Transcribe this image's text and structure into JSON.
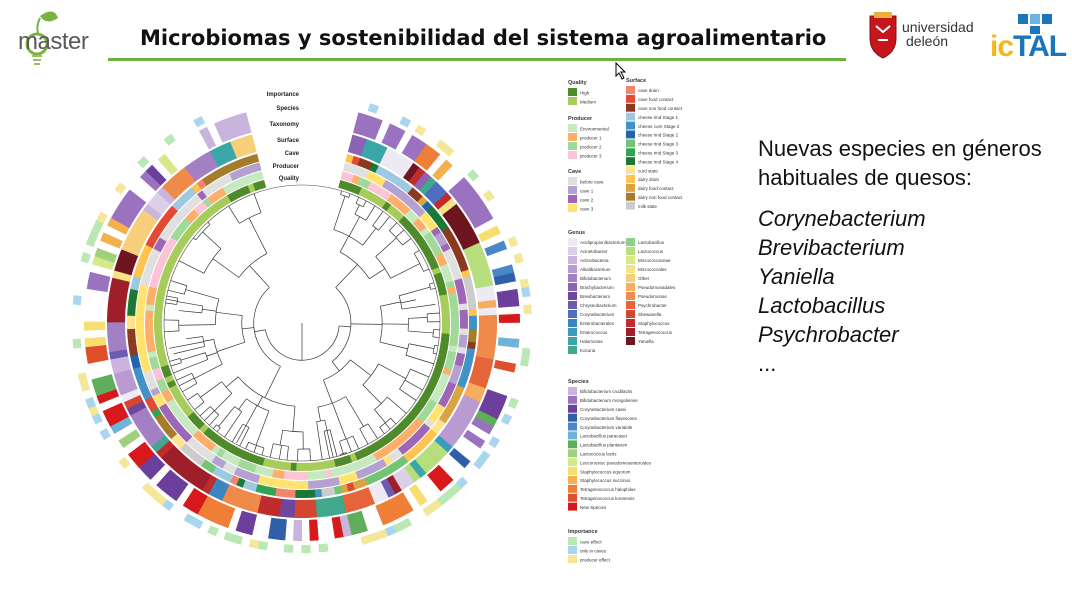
{
  "header": {
    "logo_text": "master",
    "title": "Microbiomas y sostenibilidad del sistema agroalimentario",
    "university_line1": "universidad",
    "university_line2": "deleón",
    "ictal_ic": "ic",
    "ictal_tal": "TAL"
  },
  "figure": {
    "ring_labels": [
      "Importance",
      "Species",
      "Taxonomy",
      "Surface",
      "Cave",
      "Producer",
      "Quality"
    ]
  },
  "legend": {
    "quality": {
      "title": "Quality",
      "items": [
        {
          "label": "High",
          "color": "#4f8a2b"
        },
        {
          "label": "Medium",
          "color": "#a6cc5a"
        }
      ]
    },
    "producer": {
      "title": "Producer",
      "items": [
        {
          "label": "Environmental",
          "color": "#c7e9c0"
        },
        {
          "label": "producer 1",
          "color": "#fdae6b"
        },
        {
          "label": "producer 2",
          "color": "#a1d99b"
        },
        {
          "label": "producer 3",
          "color": "#fcc5d7"
        }
      ]
    },
    "cave": {
      "title": "Cave",
      "items": [
        {
          "label": "before cave",
          "color": "#e0e0e0"
        },
        {
          "label": "cave 1",
          "color": "#b3a2d1"
        },
        {
          "label": "cave 2",
          "color": "#9e66b6"
        },
        {
          "label": "cave 3",
          "color": "#ffe36e"
        }
      ]
    },
    "surface": {
      "title": "Surface",
      "items": [
        {
          "label": "cave drain",
          "color": "#f4836b"
        },
        {
          "label": "cave food contact",
          "color": "#e34a33"
        },
        {
          "label": "cave non food contact",
          "color": "#8c3a1f"
        },
        {
          "label": "cheese rind Stage 1",
          "color": "#9ecae1"
        },
        {
          "label": "cheese core Stage 2",
          "color": "#4292c6"
        },
        {
          "label": "cheese rind Stage 2",
          "color": "#2166ac"
        },
        {
          "label": "cheese rind Stage 3",
          "color": "#74c476"
        },
        {
          "label": "cheese rind Stage 3",
          "color": "#31a354"
        },
        {
          "label": "cheese rind Stage 4",
          "color": "#1b7837"
        },
        {
          "label": "curd state",
          "color": "#fee391"
        },
        {
          "label": "dairy drain",
          "color": "#fec44f"
        },
        {
          "label": "dairy food contact",
          "color": "#d9a441"
        },
        {
          "label": "dairy non food contact",
          "color": "#a67c2c"
        },
        {
          "label": "milk state",
          "color": "#cccccc"
        }
      ]
    },
    "genus": {
      "title": "Genus",
      "col1": [
        {
          "label": "Acidipropionibacterium",
          "color": "#eeeaf4"
        },
        {
          "label": "Acinetobacter",
          "color": "#dcd0e8"
        },
        {
          "label": "Actinobacteria",
          "color": "#cbb5dd"
        },
        {
          "label": "Alkalibacterium",
          "color": "#b99ad1"
        },
        {
          "label": "Bifidobacterium",
          "color": "#a37fc4"
        },
        {
          "label": "Brachybacterium",
          "color": "#8c62b5"
        },
        {
          "label": "Brevibacterium",
          "color": "#6e46a0"
        },
        {
          "label": "Chryseobacterium",
          "color": "#6a5bb0"
        },
        {
          "label": "Corynebacterium",
          "color": "#4e6fbf"
        },
        {
          "label": "Enterobacterales",
          "color": "#3c85c2"
        },
        {
          "label": "Enterococcus",
          "color": "#3a9cbd"
        },
        {
          "label": "Halomonas",
          "color": "#3aa6a8"
        },
        {
          "label": "Kocuria",
          "color": "#42a88c"
        }
      ],
      "col2": [
        {
          "label": "Lactobacillus",
          "color": "#8ecf8a"
        },
        {
          "label": "Lactococcus",
          "color": "#b6de7d"
        },
        {
          "label": "Micrococcaceae",
          "color": "#d9ea85"
        },
        {
          "label": "Micrococcales",
          "color": "#f5e486"
        },
        {
          "label": "Other",
          "color": "#f7ce7a"
        },
        {
          "label": "Pseudomonadales",
          "color": "#f5ad5f"
        },
        {
          "label": "Pseudomonas",
          "color": "#f08a4b"
        },
        {
          "label": "Psychrobacter",
          "color": "#e6643a"
        },
        {
          "label": "Shewanella",
          "color": "#d44630"
        },
        {
          "label": "Staphylococcus",
          "color": "#c02c2c"
        },
        {
          "label": "Tetragenococcus",
          "color": "#9e1f2a"
        },
        {
          "label": "Yaniella",
          "color": "#6e1520"
        }
      ]
    },
    "species": {
      "title": "Species",
      "items": [
        {
          "label": "Bifidobacterium crudilactis",
          "color": "#c8b4dc"
        },
        {
          "label": "Bifidobacterium mongoliense",
          "color": "#9a72c0"
        },
        {
          "label": "Corynebacterium casei",
          "color": "#6b3f9b"
        },
        {
          "label": "Corynebacterium flavescens",
          "color": "#2f5fa8"
        },
        {
          "label": "Corynebacterium variabile",
          "color": "#4a86c8"
        },
        {
          "label": "Lactobacillus paracasei",
          "color": "#6fb3d6"
        },
        {
          "label": "Lactobacillus plantarum",
          "color": "#5fae5c"
        },
        {
          "label": "Lactococcus lactis",
          "color": "#9fd17c"
        },
        {
          "label": "Leuconostoc pseudomesenteroides",
          "color": "#d6e98a"
        },
        {
          "label": "Staphylococcus equorum",
          "color": "#f7de6e"
        },
        {
          "label": "Staphylococcus succinus",
          "color": "#f5b04e"
        },
        {
          "label": "Tetragenococcus halophilus",
          "color": "#ef7e36"
        },
        {
          "label": "Tetragenococcus koreensis",
          "color": "#e04f2b"
        },
        {
          "label": "New Species",
          "color": "#d7191c"
        }
      ]
    },
    "importance": {
      "title": "Importance",
      "items": [
        {
          "label": "cave effect",
          "color": "#b9e8b4"
        },
        {
          "label": "only in caves",
          "color": "#a9d6ee"
        },
        {
          "label": "producer effect",
          "color": "#f5e79a"
        }
      ]
    }
  },
  "side_text": {
    "intro": "Nuevas especies en géneros habituales de quesos:",
    "species": [
      "Corynebacterium",
      "Brevibacterium",
      "Yaniella",
      "Lactobacillus",
      "Psychrobacter"
    ],
    "ellipsis": "..."
  }
}
